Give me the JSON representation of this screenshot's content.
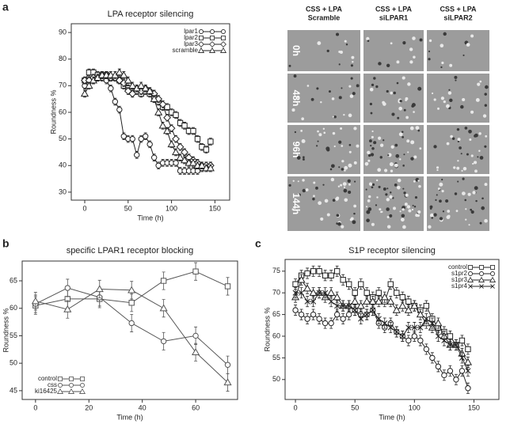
{
  "panels": [
    "a",
    "b",
    "c"
  ],
  "image_grid": {
    "columns": [
      [
        "CSS + LPA",
        "Scramble"
      ],
      [
        "CSS + LPA",
        "siLPAR1"
      ],
      [
        "CSS + LPA",
        "siLPAR2"
      ]
    ],
    "rows": [
      "0h",
      "48h",
      "96h",
      "144h"
    ]
  },
  "chart_data": [
    {
      "type": "line",
      "title": "LPA receptor silencing",
      "xlabel": "Time (h)",
      "ylabel": "Roundness %",
      "x": [
        0,
        5,
        10,
        15,
        20,
        25,
        30,
        35,
        40,
        45,
        50,
        55,
        60,
        65,
        70,
        75,
        80,
        85,
        90,
        95,
        100,
        105,
        110,
        115,
        120,
        125,
        130,
        135,
        140,
        145
      ],
      "xlim": [
        -15.5,
        167
      ],
      "xticks": [
        0,
        50,
        100,
        150
      ],
      "ylim": [
        27,
        93.3
      ],
      "yticks": [
        30,
        40,
        50,
        60,
        70,
        80,
        90
      ],
      "legend": "upper right",
      "series": [
        {
          "name": "lpar1",
          "color": "#222222",
          "marker": "circle",
          "error": 1.3,
          "values": [
            70,
            72,
            72,
            73,
            73,
            72,
            69,
            64,
            61,
            51,
            50,
            50,
            44,
            50,
            51,
            48,
            43,
            40,
            41,
            41,
            41,
            41,
            38,
            38,
            38,
            38,
            38,
            39,
            40,
            40
          ]
        },
        {
          "name": "lpar2",
          "color": "#222222",
          "marker": "square",
          "error": 1.3,
          "values": [
            72,
            75,
            75,
            74,
            74,
            74,
            73,
            73,
            72,
            70,
            69,
            68,
            68,
            67,
            68,
            67,
            66,
            64,
            62,
            62,
            60,
            59,
            56,
            55,
            53,
            53,
            50,
            47,
            46,
            49
          ]
        },
        {
          "name": "lpar3",
          "color": "#222222",
          "marker": "diamond",
          "error": 1.3,
          "values": [
            72,
            72,
            73,
            73,
            74,
            74,
            73,
            73,
            72,
            71,
            68,
            67,
            69,
            68,
            69,
            68,
            67,
            65,
            63,
            58,
            54,
            50,
            47,
            45,
            43,
            42,
            41,
            40,
            40,
            40
          ]
        },
        {
          "name": "scramble",
          "color": "#222222",
          "marker": "triangle",
          "error": 1.3,
          "values": [
            67,
            70,
            72,
            73,
            74,
            74,
            74,
            74,
            75,
            74,
            72,
            70,
            69,
            70,
            69,
            68,
            65,
            60,
            55,
            53,
            48,
            45,
            43,
            42,
            41,
            41,
            40,
            40,
            39,
            39
          ]
        }
      ]
    },
    {
      "type": "line",
      "title": "specific LPAR1 receptor blocking",
      "xlabel": "Time (h)",
      "ylabel": "Roundness %",
      "x": [
        0,
        12,
        24,
        36,
        48,
        60,
        72
      ],
      "xlim": [
        -5,
        75.7
      ],
      "xticks": [
        0,
        20,
        40,
        60
      ],
      "ylim": [
        43.4,
        68.6
      ],
      "yticks": [
        45,
        50,
        55,
        60,
        65
      ],
      "legend": "lower left",
      "series": [
        {
          "name": "control",
          "color": "#555555",
          "marker": "square",
          "error": 1.6,
          "values": [
            60.5,
            61.7,
            61.7,
            61,
            65,
            66.7,
            64
          ]
        },
        {
          "name": "css",
          "color": "#555555",
          "marker": "circle",
          "error": 1.6,
          "values": [
            60.8,
            63.7,
            62,
            57.3,
            54,
            55,
            49.7
          ]
        },
        {
          "name": "ki16425",
          "color": "#555555",
          "marker": "triangle",
          "error": 1.6,
          "values": [
            61.3,
            59.8,
            63.5,
            63.3,
            60,
            52,
            46.5
          ]
        }
      ]
    },
    {
      "type": "line",
      "title": "S1P receptor silencing",
      "xlabel": "Time (h)",
      "ylabel": "Roundness %",
      "x": [
        0,
        5,
        10,
        15,
        20,
        25,
        30,
        35,
        40,
        45,
        50,
        55,
        60,
        65,
        70,
        75,
        80,
        85,
        90,
        95,
        100,
        105,
        110,
        115,
        120,
        125,
        130,
        135,
        140,
        145
      ],
      "xlim": [
        -8.7,
        171
      ],
      "xticks": [
        0,
        50,
        100,
        150
      ],
      "ylim": [
        45.4,
        77.7
      ],
      "yticks": [
        50,
        55,
        60,
        65,
        70,
        75
      ],
      "legend": "upper right",
      "series": [
        {
          "name": "control",
          "color": "#222222",
          "marker": "square",
          "error": 1.2,
          "values": [
            72,
            74,
            74.5,
            75,
            75,
            74,
            74,
            75,
            73,
            72,
            70,
            72,
            70,
            69,
            70,
            68,
            72,
            70,
            69,
            68,
            67,
            66,
            67,
            64,
            62,
            61,
            60,
            58,
            59,
            57
          ]
        },
        {
          "name": "s1pr2",
          "color": "#222222",
          "marker": "circle",
          "error": 1.2,
          "values": [
            66,
            65,
            64,
            65,
            64,
            63,
            63,
            65,
            64,
            65,
            66,
            65,
            65,
            66,
            63,
            62,
            63,
            61,
            60,
            59,
            60,
            59,
            57,
            55,
            53,
            51,
            52,
            50,
            52,
            48
          ]
        },
        {
          "name": "s1pr3",
          "color": "#222222",
          "marker": "triangle",
          "error": 1.2,
          "values": [
            69,
            73,
            71,
            70,
            70,
            69,
            70,
            69,
            67,
            67,
            68,
            67,
            68,
            68,
            68,
            69,
            68,
            66,
            67,
            66,
            67,
            65,
            63,
            62,
            63,
            60,
            58,
            58,
            56,
            54
          ]
        },
        {
          "name": "s1pr4",
          "color": "#222222",
          "marker": "x",
          "error": 1.2,
          "values": [
            70,
            70,
            68,
            68,
            70,
            70,
            68,
            67,
            67,
            67,
            66,
            64,
            65,
            66,
            64,
            63,
            62,
            61,
            60,
            62,
            62,
            62,
            64,
            63,
            60,
            59,
            58,
            58,
            55,
            52
          ]
        }
      ]
    }
  ]
}
